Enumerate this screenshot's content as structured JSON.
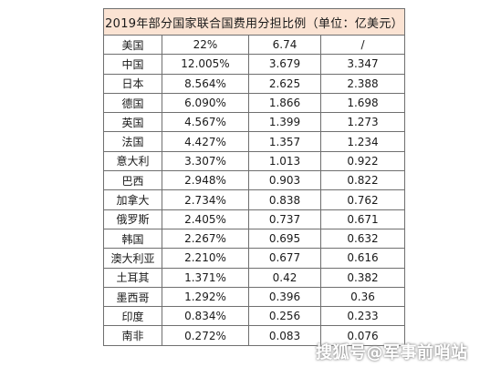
{
  "title": "2019年部分国家联合国费用分担比例（单位：亿美元）",
  "rows": [
    [
      "美国",
      "22%",
      "6.74",
      "/"
    ],
    [
      "中国",
      "12.005%",
      "3.679",
      "3.347"
    ],
    [
      "日本",
      "8.564%",
      "2.625",
      "2.388"
    ],
    [
      "德国",
      "6.090%",
      "1.866",
      "1.698"
    ],
    [
      "英国",
      "4.567%",
      "1.399",
      "1.273"
    ],
    [
      "法国",
      "4.427%",
      "1.357",
      "1.234"
    ],
    [
      "意大利",
      "3.307%",
      "1.013",
      "0.922"
    ],
    [
      "巴西",
      "2.948%",
      "0.903",
      "0.822"
    ],
    [
      "加拿大",
      "2.734%",
      "0.838",
      "0.762"
    ],
    [
      "俄罗斯",
      "2.405%",
      "0.737",
      "0.671"
    ],
    [
      "韩国",
      "2.267%",
      "0.695",
      "0.632"
    ],
    [
      "澳大利亚",
      "2.210%",
      "0.677",
      "0.616"
    ],
    [
      "土耳其",
      "1.371%",
      "0.42",
      "0.382"
    ],
    [
      "墨西哥",
      "1.292%",
      "0.396",
      "0.36"
    ],
    [
      "印度",
      "0.834%",
      "0.256",
      "0.233"
    ],
    [
      "南非",
      "0.272%",
      "0.083",
      "0.076"
    ]
  ],
  "watermark": "搜狐号@军事前哨站"
}
